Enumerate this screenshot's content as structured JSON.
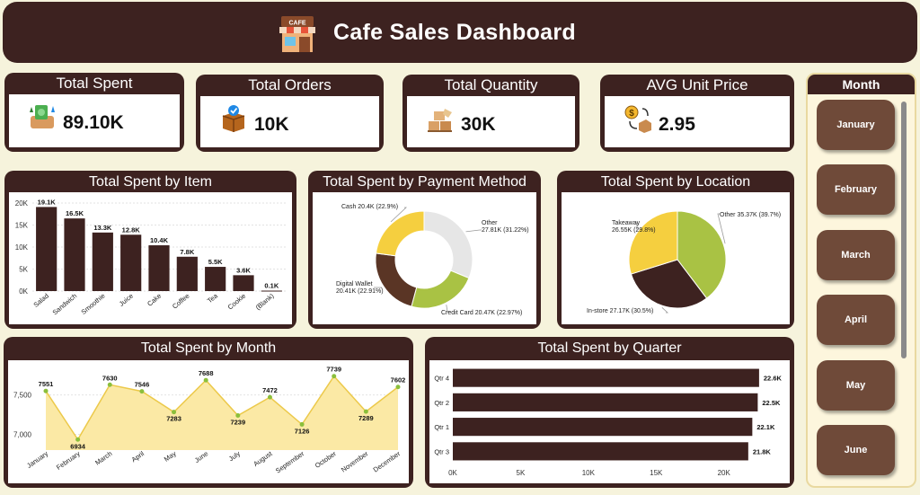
{
  "header": {
    "title": "Cafe Sales Dashboard",
    "logo_text": "CAFE"
  },
  "kpis": [
    {
      "label": "Total Spent",
      "value": "89.10K",
      "icon": "money-icon"
    },
    {
      "label": "Total Orders",
      "value": "10K",
      "icon": "orders-box-icon"
    },
    {
      "label": "Total Quantity",
      "value": "30K",
      "icon": "boxes-icon"
    },
    {
      "label": "AVG Unit Price",
      "value": "2.95",
      "icon": "price-icon"
    }
  ],
  "sidebar": {
    "title": "Month",
    "months": [
      "January",
      "February",
      "March",
      "April",
      "May",
      "June"
    ]
  },
  "colors": {
    "dark": "#3d2220",
    "green": "#a9c244",
    "yellow": "#f5cf3f",
    "grey": "#e6e6e6",
    "brown": "#5a3525",
    "area": "#fbe9a5",
    "line": "#ecc94a"
  },
  "chart_data": [
    {
      "type": "bar",
      "title": "Total Spent by Item",
      "categories": [
        "Salad",
        "Sandwich",
        "Smoothie",
        "Juice",
        "Cake",
        "Coffee",
        "Tea",
        "Cookie",
        "(Blank)"
      ],
      "values": [
        19.1,
        16.5,
        13.3,
        12.8,
        10.4,
        7.8,
        5.5,
        3.6,
        0.1
      ],
      "labels": [
        "19.1K",
        "16.5K",
        "13.3K",
        "12.8K",
        "10.4K",
        "7.8K",
        "5.5K",
        "3.6K",
        "0.1K"
      ],
      "yticks": [
        "0K",
        "5K",
        "10K",
        "15K",
        "20K"
      ],
      "ylim": [
        0,
        20
      ]
    },
    {
      "type": "pie",
      "title": "Total Spent by Payment Method",
      "donut": true,
      "slices": [
        {
          "name": "Other",
          "value": 27.81,
          "label": "Other",
          "label2": "27.81K (31.22%)",
          "color": "#e6e6e6"
        },
        {
          "name": "Credit Card",
          "value": 20.47,
          "label": "Credit Card 20.47K (22.97%)",
          "color": "#a9c244"
        },
        {
          "name": "Digital Wallet",
          "value": 20.41,
          "label": "Digital Wallet",
          "label2": "20.41K (22.91%)",
          "color": "#5a3525"
        },
        {
          "name": "Cash",
          "value": 20.4,
          "label": "Cash 20.4K (22.9%)",
          "color": "#f5cf3f"
        }
      ]
    },
    {
      "type": "pie",
      "title": "Total Spent by Location",
      "donut": false,
      "slices": [
        {
          "name": "Other",
          "value": 35.37,
          "label": "Other 35.37K (39.7%)",
          "color": "#a9c244"
        },
        {
          "name": "In-store",
          "value": 27.17,
          "label": "In-store 27.17K (30.5%)",
          "color": "#3d2220"
        },
        {
          "name": "Takeaway",
          "value": 26.55,
          "label": "Takeaway",
          "label2": "26.55K (29.8%)",
          "color": "#f5cf3f"
        }
      ]
    },
    {
      "type": "area",
      "title": "Total Spent by Month",
      "categories": [
        "January",
        "February",
        "March",
        "April",
        "May",
        "June",
        "July",
        "August",
        "September",
        "October",
        "November",
        "December"
      ],
      "values": [
        7551,
        6934,
        7630,
        7546,
        7283,
        7688,
        7239,
        7472,
        7126,
        7739,
        7289,
        7602
      ],
      "yticks": [
        7000,
        7500
      ],
      "ylim": [
        6800,
        7850
      ]
    },
    {
      "type": "bar",
      "orientation": "horizontal",
      "title": "Total Spent by Quarter",
      "categories": [
        "Qtr 4",
        "Qtr 2",
        "Qtr 1",
        "Qtr 3"
      ],
      "values": [
        22.6,
        22.5,
        22.1,
        21.8
      ],
      "labels": [
        "22.6K",
        "22.5K",
        "22.1K",
        "21.8K"
      ],
      "xticks": [
        "0K",
        "5K",
        "10K",
        "15K",
        "20K"
      ],
      "xlim": [
        0,
        23.8
      ]
    }
  ]
}
